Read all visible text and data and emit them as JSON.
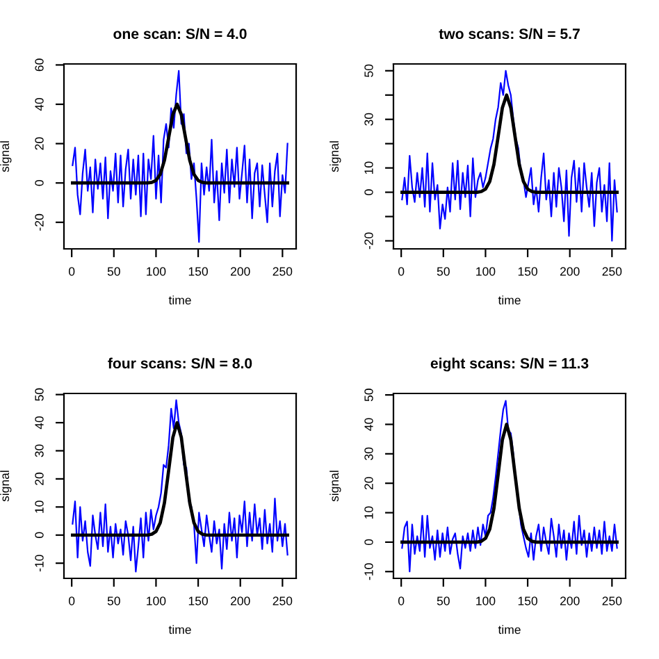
{
  "chart_data": [
    {
      "type": "line",
      "title": "one scan: S/N = 4.0",
      "xlabel": "time",
      "ylabel": "signal",
      "line_style": "solid",
      "xlim": [
        -9.2,
        266.2
      ],
      "xticks": [
        0,
        50,
        100,
        150,
        200,
        250
      ],
      "ylim": [
        -33.5,
        60.5
      ],
      "yticks": [
        -20,
        0,
        20,
        40,
        60
      ],
      "x": [
        1,
        4,
        7,
        10,
        13,
        16,
        19,
        22,
        25,
        28,
        31,
        34,
        37,
        40,
        43,
        46,
        49,
        52,
        55,
        58,
        61,
        64,
        67,
        70,
        73,
        76,
        79,
        82,
        85,
        88,
        91,
        94,
        97,
        100,
        103,
        106,
        109,
        112,
        115,
        118,
        121,
        124,
        127,
        130,
        133,
        136,
        139,
        142,
        145,
        148,
        151,
        154,
        157,
        160,
        163,
        166,
        169,
        172,
        175,
        178,
        181,
        184,
        187,
        190,
        193,
        196,
        199,
        202,
        205,
        208,
        211,
        214,
        217,
        220,
        223,
        226,
        229,
        232,
        235,
        238,
        241,
        244,
        247,
        250,
        253,
        256
      ],
      "series": [
        {
          "color": "#0000ff",
          "values": [
            9,
            18,
            -6,
            -16,
            5,
            17,
            -4,
            8,
            -15,
            12,
            -3,
            10,
            -8,
            13,
            -18,
            6,
            -4,
            15,
            -10,
            14,
            -12,
            7,
            17,
            -8,
            12,
            -6,
            14,
            -17,
            15,
            -16,
            12,
            2,
            24,
            -8,
            14,
            -10,
            22,
            30,
            18,
            38,
            28,
            45,
            57,
            30,
            35,
            15,
            20,
            2,
            10,
            -8,
            -30,
            10,
            -6,
            8,
            -4,
            22,
            -10,
            6,
            -19,
            10,
            -5,
            17,
            -10,
            12,
            -2,
            18,
            -8,
            5,
            19,
            -10,
            12,
            -18,
            5,
            10,
            -12,
            9,
            -6,
            -20,
            10,
            -12,
            6,
            15,
            -17,
            4,
            -5,
            20
          ]
        },
        {
          "color": "#000000",
          "x": [
            1,
            90,
            95,
            100,
            105,
            110,
            115,
            120,
            125,
            130,
            135,
            140,
            145,
            150,
            155,
            160,
            256
          ],
          "values": [
            0,
            0,
            0.3,
            1.3,
            4.4,
            11.5,
            23,
            34.8,
            40,
            34.8,
            23,
            11.5,
            4.4,
            1.3,
            0.3,
            0,
            0
          ]
        }
      ]
    },
    {
      "type": "line",
      "title": "two scans: S/N = 5.7",
      "xlabel": "time",
      "ylabel": "signal",
      "line_style": "solid",
      "xlim": [
        -9.2,
        266.2
      ],
      "xticks": [
        0,
        50,
        100,
        150,
        200,
        250
      ],
      "ylim": [
        -23.3,
        52.8
      ],
      "yticks": [
        -20,
        {
          "value": -10,
          "label": null
        },
        0,
        10,
        {
          "value": 20,
          "label": null
        },
        30,
        {
          "value": 40,
          "label": null
        },
        50
      ],
      "x": [
        1,
        4,
        7,
        10,
        13,
        16,
        19,
        22,
        25,
        28,
        31,
        34,
        37,
        40,
        43,
        46,
        49,
        52,
        55,
        58,
        61,
        64,
        67,
        70,
        73,
        76,
        79,
        82,
        85,
        88,
        91,
        94,
        97,
        100,
        103,
        106,
        109,
        112,
        115,
        118,
        121,
        124,
        127,
        130,
        133,
        136,
        139,
        142,
        145,
        148,
        151,
        154,
        157,
        160,
        163,
        166,
        169,
        172,
        175,
        178,
        181,
        184,
        187,
        190,
        193,
        196,
        199,
        202,
        205,
        208,
        211,
        214,
        217,
        220,
        223,
        226,
        229,
        232,
        235,
        238,
        241,
        244,
        247,
        250,
        253,
        256
      ],
      "series": [
        {
          "color": "#0000ff",
          "values": [
            -3,
            6,
            -5,
            15,
            2,
            -4,
            8,
            -2,
            10,
            -6,
            16,
            -8,
            12,
            -3,
            3,
            -15,
            -5,
            -11,
            2,
            -8,
            12,
            -3,
            13,
            -7,
            8,
            -2,
            11,
            -10,
            14,
            -2,
            5,
            8,
            2,
            6,
            12,
            18,
            22,
            30,
            35,
            45,
            40,
            50,
            44,
            40,
            30,
            22,
            18,
            8,
            5,
            -2,
            4,
            10,
            -5,
            2,
            -8,
            6,
            16,
            -3,
            5,
            -10,
            8,
            -6,
            10,
            2,
            -12,
            9,
            -18,
            6,
            13,
            -4,
            10,
            -8,
            12,
            2,
            -6,
            8,
            -14,
            4,
            10,
            -8,
            3,
            -12,
            12,
            -20,
            5,
            -8
          ]
        },
        {
          "color": "#000000",
          "x": [
            1,
            90,
            95,
            100,
            105,
            110,
            115,
            120,
            125,
            130,
            135,
            140,
            145,
            150,
            155,
            160,
            256
          ],
          "values": [
            0,
            0,
            0.3,
            1.3,
            4.4,
            11.5,
            23,
            34.8,
            40,
            34.8,
            23,
            11.5,
            4.4,
            1.3,
            0.3,
            0,
            0
          ]
        }
      ]
    },
    {
      "type": "line",
      "title": "four scans: S/N = 8.0",
      "xlabel": "time",
      "ylabel": "signal",
      "line_style": "solid",
      "xlim": [
        -9.2,
        266.2
      ],
      "xticks": [
        0,
        50,
        100,
        150,
        200,
        250
      ],
      "ylim": [
        -15.4,
        50.4
      ],
      "yticks": [
        -10,
        0,
        10,
        20,
        30,
        40,
        50
      ],
      "x": [
        1,
        4,
        7,
        10,
        13,
        16,
        19,
        22,
        25,
        28,
        31,
        34,
        37,
        40,
        43,
        46,
        49,
        52,
        55,
        58,
        61,
        64,
        67,
        70,
        73,
        76,
        79,
        82,
        85,
        88,
        91,
        94,
        97,
        100,
        103,
        106,
        109,
        112,
        115,
        118,
        121,
        124,
        127,
        130,
        133,
        136,
        139,
        142,
        145,
        148,
        151,
        154,
        157,
        160,
        163,
        166,
        169,
        172,
        175,
        178,
        181,
        184,
        187,
        190,
        193,
        196,
        199,
        202,
        205,
        208,
        211,
        214,
        217,
        220,
        223,
        226,
        229,
        232,
        235,
        238,
        241,
        244,
        247,
        250,
        253,
        256
      ],
      "series": [
        {
          "color": "#0000ff",
          "values": [
            4,
            12,
            -8,
            10,
            -2,
            5,
            -6,
            -11,
            7,
            0,
            -5,
            8,
            -4,
            11,
            -6,
            3,
            -8,
            4,
            -3,
            2,
            -7,
            5,
            0,
            -9,
            3,
            -13,
            -4,
            6,
            -8,
            8,
            -2,
            9,
            2,
            7,
            10,
            15,
            25,
            24,
            32,
            45,
            38,
            48,
            40,
            36,
            25,
            24,
            12,
            10,
            4,
            -10,
            8,
            2,
            -4,
            7,
            0,
            -6,
            5,
            -3,
            2,
            -12,
            4,
            -5,
            8,
            -2,
            6,
            -8,
            7,
            1,
            12,
            -4,
            8,
            -2,
            11,
            0,
            6,
            -5,
            9,
            -3,
            4,
            -6,
            13,
            -2,
            5,
            -4,
            4,
            -7
          ]
        },
        {
          "color": "#000000",
          "x": [
            1,
            90,
            95,
            100,
            105,
            110,
            115,
            120,
            125,
            130,
            135,
            140,
            145,
            150,
            155,
            160,
            256
          ],
          "values": [
            0,
            0,
            0.3,
            1.3,
            4.4,
            11.5,
            23,
            34.8,
            40,
            34.8,
            23,
            11.5,
            4.4,
            1.3,
            0.3,
            0,
            0
          ]
        }
      ]
    },
    {
      "type": "line",
      "title": "eight scans: S/N = 11.3",
      "xlabel": "time",
      "ylabel": "signal",
      "line_style": "solid",
      "xlim": [
        -9.2,
        266.2
      ],
      "xticks": [
        0,
        50,
        100,
        150,
        200,
        250
      ],
      "ylim": [
        -12.3,
        50.5
      ],
      "yticks": [
        -10,
        0,
        10,
        20,
        30,
        40,
        50
      ],
      "x": [
        1,
        4,
        7,
        10,
        13,
        16,
        19,
        22,
        25,
        28,
        31,
        34,
        37,
        40,
        43,
        46,
        49,
        52,
        55,
        58,
        61,
        64,
        67,
        70,
        73,
        76,
        79,
        82,
        85,
        88,
        91,
        94,
        97,
        100,
        103,
        106,
        109,
        112,
        115,
        118,
        121,
        124,
        127,
        130,
        133,
        136,
        139,
        142,
        145,
        148,
        151,
        154,
        157,
        160,
        163,
        166,
        169,
        172,
        175,
        178,
        181,
        184,
        187,
        190,
        193,
        196,
        199,
        202,
        205,
        208,
        211,
        214,
        217,
        220,
        223,
        226,
        229,
        232,
        235,
        238,
        241,
        244,
        247,
        250,
        253,
        256
      ],
      "series": [
        {
          "color": "#0000ff",
          "values": [
            -2,
            5,
            7,
            -10,
            6,
            -4,
            2,
            -3,
            9,
            -5,
            9,
            -2,
            2,
            -6,
            4,
            -5,
            3,
            -3,
            5,
            -4,
            1,
            3,
            -4,
            -9,
            2,
            -2,
            3,
            -3,
            4,
            -2,
            5,
            -1,
            6,
            2,
            9,
            10,
            15,
            22,
            30,
            38,
            45,
            48,
            38,
            37,
            30,
            20,
            14,
            6,
            2,
            -2,
            -5,
            3,
            -6,
            2,
            6,
            -3,
            5,
            0,
            -4,
            8,
            2,
            -5,
            6,
            -2,
            4,
            -6,
            3,
            -2,
            7,
            -4,
            9,
            -1,
            4,
            -5,
            3,
            -3,
            5,
            -2,
            4,
            -4,
            7,
            -3,
            2,
            -3,
            6,
            -2
          ]
        },
        {
          "color": "#000000",
          "x": [
            1,
            90,
            95,
            100,
            105,
            110,
            115,
            120,
            125,
            130,
            135,
            140,
            145,
            150,
            155,
            160,
            256
          ],
          "values": [
            0,
            0,
            0.3,
            1.3,
            4.4,
            11.5,
            23,
            34.8,
            40,
            34.8,
            23,
            11.5,
            4.4,
            1.3,
            0.3,
            0,
            0
          ]
        }
      ]
    }
  ]
}
